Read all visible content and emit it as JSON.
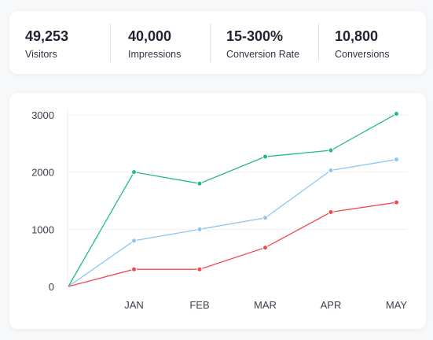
{
  "stats": [
    {
      "value": "49,253",
      "label": "Visitors"
    },
    {
      "value": "40,000",
      "label": "Impressions"
    },
    {
      "value": "15-300%",
      "label": "Conversion Rate"
    },
    {
      "value": "10,800",
      "label": "Conversions"
    }
  ],
  "chart_data": {
    "type": "line",
    "title": "",
    "xlabel": "",
    "ylabel": "",
    "categories": [
      "",
      "JAN",
      "FEB",
      "MAR",
      "APR",
      "MAY"
    ],
    "ylim": [
      0,
      3000
    ],
    "yticks": [
      "0",
      "1000",
      "2000",
      "3000"
    ],
    "grid": true,
    "series": [
      {
        "color": "#22b98b",
        "values": [
          0,
          2000,
          1800,
          2270,
          2380,
          3020
        ]
      },
      {
        "color": "#8ec6ee",
        "values": [
          0,
          800,
          1000,
          1200,
          2030,
          2220
        ]
      },
      {
        "color": "#ef4b4f",
        "values": [
          0,
          300,
          300,
          680,
          1300,
          1470
        ]
      }
    ]
  }
}
